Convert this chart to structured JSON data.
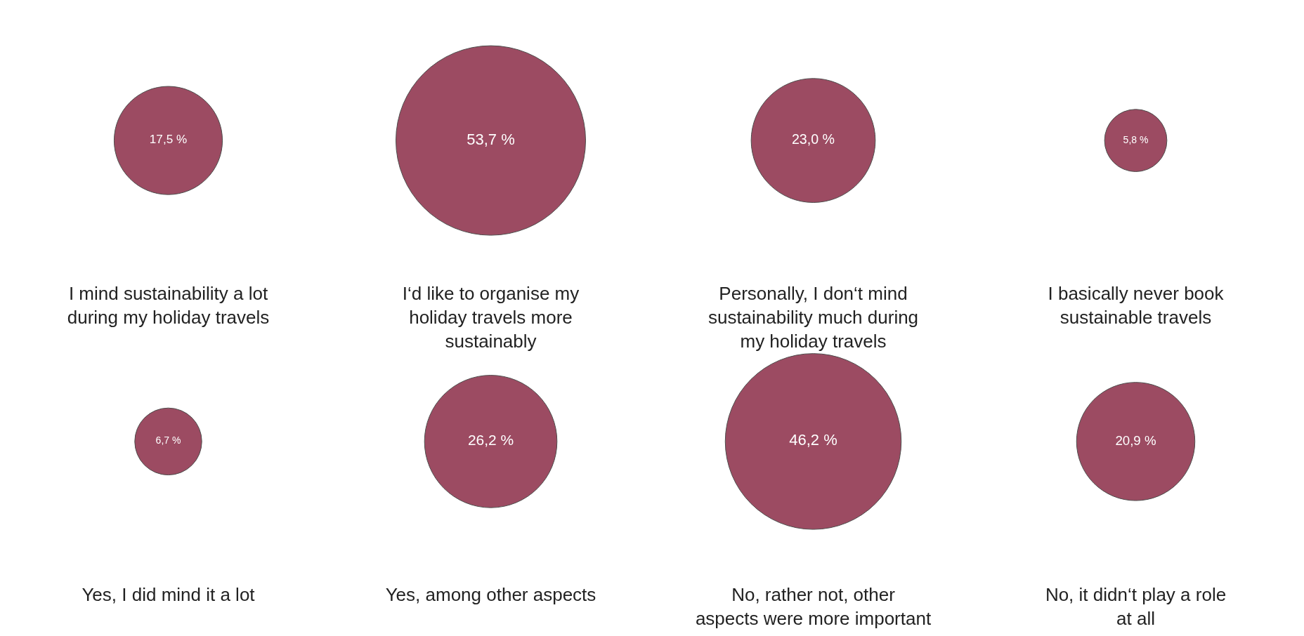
{
  "chart_data": [
    {
      "type": "other",
      "categories": [
        "I mind sustainability a lot during my holiday travels",
        "I‘d like to organise my holiday travels more sustainably",
        "Personally, I don‘t mind sustainability much during my holiday travels",
        "I basically never book sustainable travels"
      ],
      "values": [
        17.5,
        53.7,
        23.0,
        5.8
      ],
      "value_labels": [
        "17,5 %",
        "53,7 %",
        "23,0 %",
        "5,8 %"
      ],
      "color": "#730020"
    },
    {
      "type": "other",
      "categories": [
        "Yes, I did mind it a lot",
        "Yes, among other aspects",
        "No, rather not, other aspects were more important",
        "No, it didn‘t play a role at all"
      ],
      "values": [
        6.7,
        26.2,
        46.2,
        20.9
      ],
      "value_labels": [
        "6,7 %",
        "26,2 %",
        "46,2 %",
        "20,9 %"
      ],
      "color": "#730020"
    }
  ]
}
